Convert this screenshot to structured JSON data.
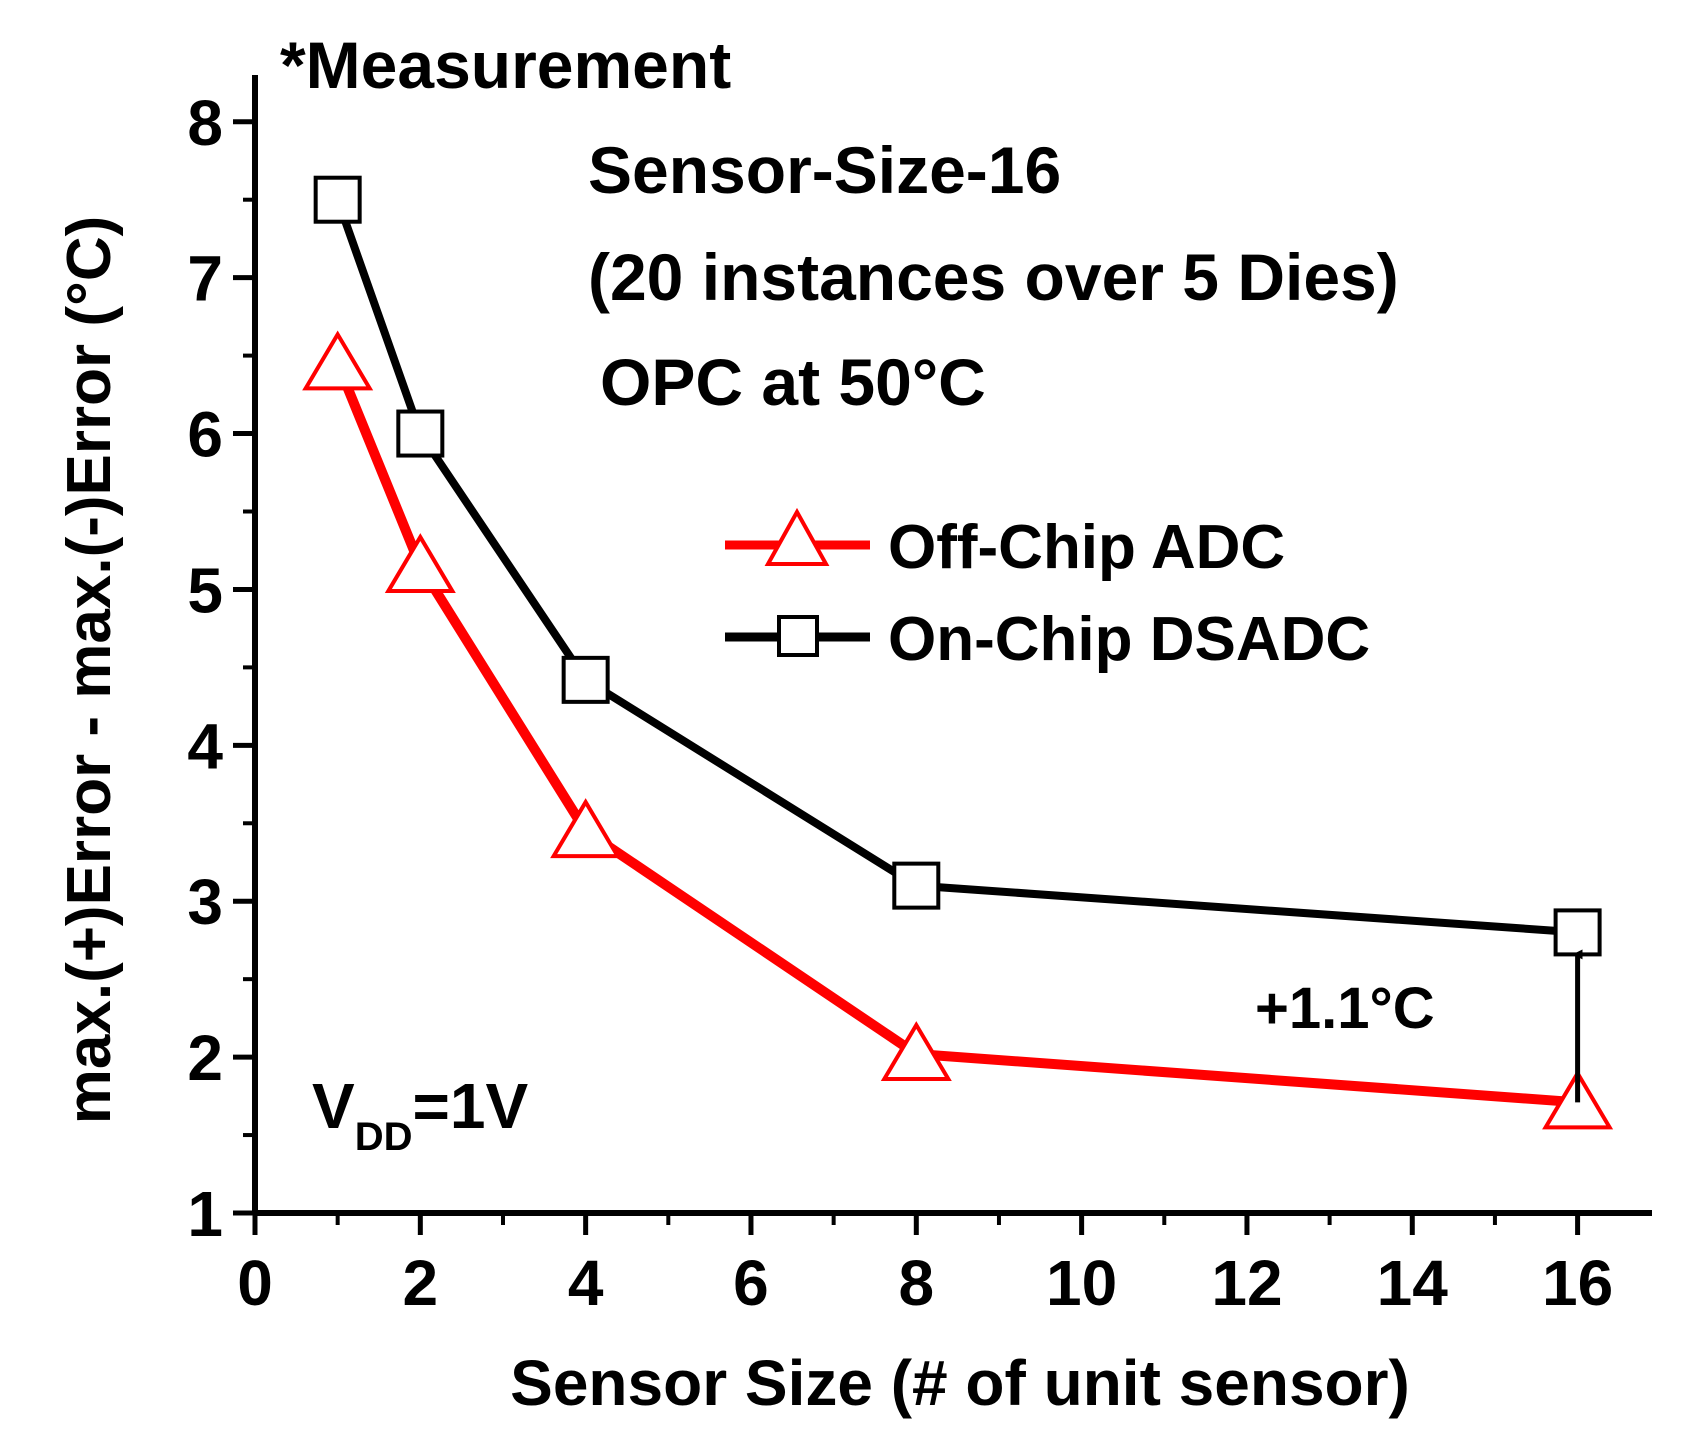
{
  "chart_data": {
    "type": "line",
    "title": "",
    "xlabel": "Sensor Size (# of unit sensor)",
    "ylabel": "max.(+)Error - max.(-)Error (°C)",
    "xlim": [
      0,
      16.9
    ],
    "ylim": [
      1,
      8.3
    ],
    "xticks": [
      0,
      2,
      4,
      6,
      8,
      10,
      12,
      14,
      16
    ],
    "yticks": [
      1,
      2,
      3,
      4,
      5,
      6,
      7,
      8
    ],
    "x_tick_labels": [
      "0",
      "2",
      "4",
      "6",
      "8",
      "10",
      "12",
      "14",
      "16"
    ],
    "y_tick_labels": [
      "1",
      "2",
      "3",
      "4",
      "5",
      "6",
      "7",
      "8"
    ],
    "x": [
      1,
      2,
      4,
      8,
      16
    ],
    "series": [
      {
        "name": "Off-Chip ADC",
        "color": "#ff0000",
        "marker": "triangle",
        "values": [
          6.45,
          5.15,
          3.45,
          2.02,
          1.71
        ]
      },
      {
        "name": "On-Chip DSADC",
        "color": "#000000",
        "marker": "square",
        "values": [
          7.5,
          6.0,
          4.42,
          3.1,
          2.8
        ]
      }
    ],
    "legend_position": "center-right",
    "annotations": {
      "measurement": "*Measurement",
      "sensor_size": "Sensor-Size-16",
      "instances": "(20 instances over 5 Dies)",
      "opc": "OPC at 50°C",
      "delta": "+1.1°C",
      "vdd_main": "V",
      "vdd_sub": "DD",
      "vdd_value": "=1V"
    },
    "arrow": {
      "x": 16,
      "from": 1.71,
      "to": 2.8
    }
  }
}
